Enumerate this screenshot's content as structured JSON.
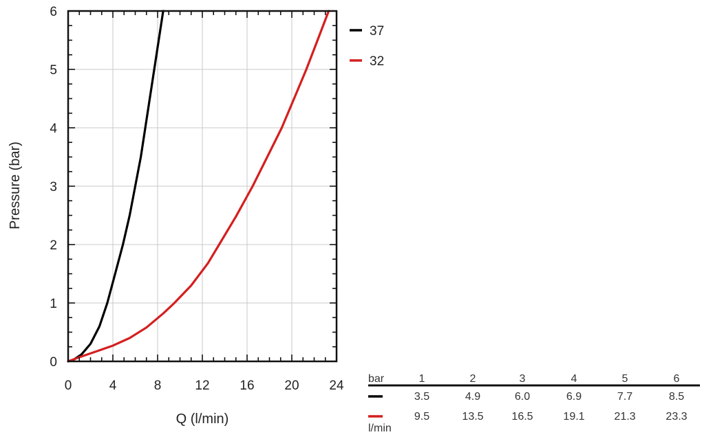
{
  "chart_data": {
    "type": "line",
    "title": "",
    "xlabel": "Q (l/min)",
    "ylabel": "Pressure (bar)",
    "xlim": [
      0,
      24
    ],
    "ylim": [
      0,
      6
    ],
    "xticks": [
      0,
      4,
      8,
      12,
      16,
      20,
      24
    ],
    "yticks": [
      0,
      1,
      2,
      3,
      4,
      5,
      6
    ],
    "grid": true,
    "legend": "right",
    "series": [
      {
        "name": "37",
        "color": "#000000",
        "x": [
          0,
          0.5,
          1.2,
          2.0,
          2.8,
          3.5,
          4.2,
          4.9,
          5.5,
          6.0,
          6.5,
          6.9,
          7.3,
          7.7,
          8.1,
          8.5
        ],
        "y": [
          0,
          0.03,
          0.12,
          0.3,
          0.6,
          1.0,
          1.5,
          2.0,
          2.5,
          3.0,
          3.5,
          4.0,
          4.5,
          5.0,
          5.5,
          6.0
        ]
      },
      {
        "name": "32",
        "color": "#d41f1f",
        "x": [
          0,
          1.0,
          2.5,
          4.0,
          5.5,
          7.0,
          8.5,
          9.5,
          11.0,
          12.5,
          13.5,
          15.0,
          16.5,
          17.8,
          19.1,
          20.2,
          21.3,
          22.3,
          23.3
        ],
        "y": [
          0,
          0.07,
          0.17,
          0.27,
          0.4,
          0.58,
          0.82,
          1.0,
          1.3,
          1.68,
          2.0,
          2.48,
          3.0,
          3.5,
          4.0,
          4.5,
          5.0,
          5.5,
          6.0
        ]
      }
    ]
  },
  "table": {
    "header_label": "bar",
    "unit_label": "l/min",
    "columns": [
      "1",
      "2",
      "3",
      "4",
      "5",
      "6"
    ],
    "rows": [
      {
        "series": "37",
        "color": "#000000",
        "values": [
          "3.5",
          "4.9",
          "6.0",
          "6.9",
          "7.7",
          "8.5"
        ]
      },
      {
        "series": "32",
        "color": "#d41f1f",
        "values": [
          "9.5",
          "13.5",
          "16.5",
          "19.1",
          "21.3",
          "23.3"
        ]
      }
    ]
  }
}
